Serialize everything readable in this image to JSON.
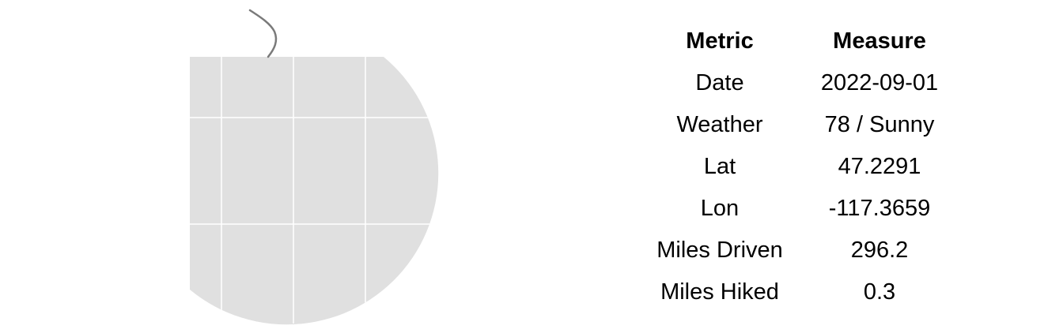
{
  "map": {
    "land_color": "#e0e0e0",
    "grid_color": "#ffffff",
    "track_color": "#7a7a7a"
  },
  "table": {
    "headers": {
      "metric": "Metric",
      "measure": "Measure"
    },
    "rows": [
      {
        "metric": "Date",
        "measure": "2022-09-01"
      },
      {
        "metric": "Weather",
        "measure": "78 / Sunny"
      },
      {
        "metric": "Lat",
        "measure": "47.2291"
      },
      {
        "metric": "Lon",
        "measure": "-117.3659"
      },
      {
        "metric": "Miles Driven",
        "measure": "296.2"
      },
      {
        "metric": "Miles Hiked",
        "measure": "0.3"
      }
    ]
  }
}
